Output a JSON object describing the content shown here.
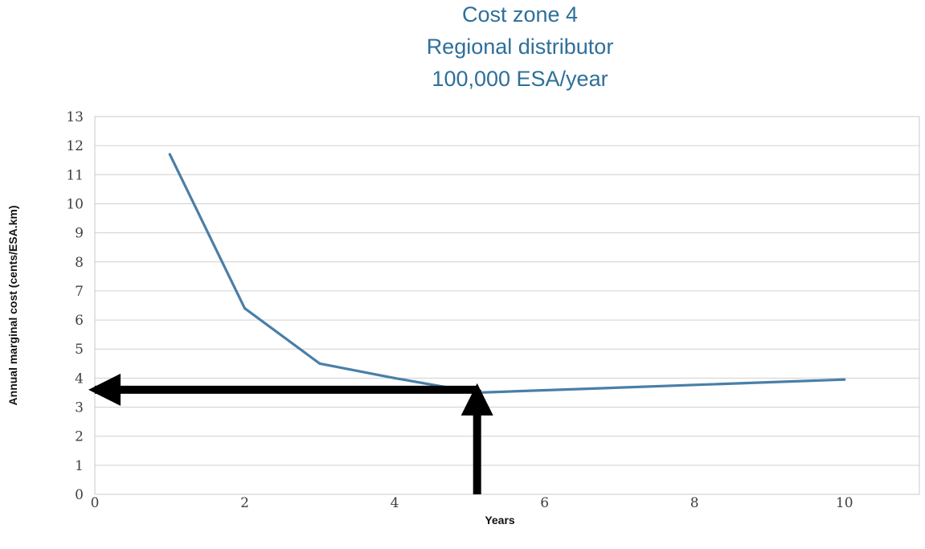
{
  "chart_data": {
    "type": "line",
    "title": [
      "Cost zone 4",
      "Regional distributor",
      "100,000 ESA/year"
    ],
    "xlabel": "Years",
    "ylabel": "Annual marginal cost (cents/ESA.km)",
    "xlim": [
      0,
      11
    ],
    "ylim": [
      0,
      13
    ],
    "x_ticks": [
      0,
      2,
      4,
      6,
      8,
      10
    ],
    "y_ticks": [
      0,
      1,
      2,
      3,
      4,
      5,
      6,
      7,
      8,
      9,
      10,
      11,
      12,
      13
    ],
    "grid": "horizontal",
    "legend": "none",
    "series": [
      {
        "x": [
          1,
          2,
          3,
          4,
          5.1,
          10
        ],
        "y": [
          11.7,
          6.4,
          4.5,
          4.0,
          3.5,
          3.95
        ],
        "color": "#4a7fa7"
      }
    ],
    "annotations": [
      {
        "type": "arrow",
        "from": [
          5.1,
          3.6
        ],
        "to": [
          0,
          3.6
        ],
        "color": "#000000"
      },
      {
        "type": "arrow",
        "from": [
          5.1,
          0
        ],
        "to": [
          5.1,
          3.6
        ],
        "color": "#000000"
      }
    ]
  }
}
